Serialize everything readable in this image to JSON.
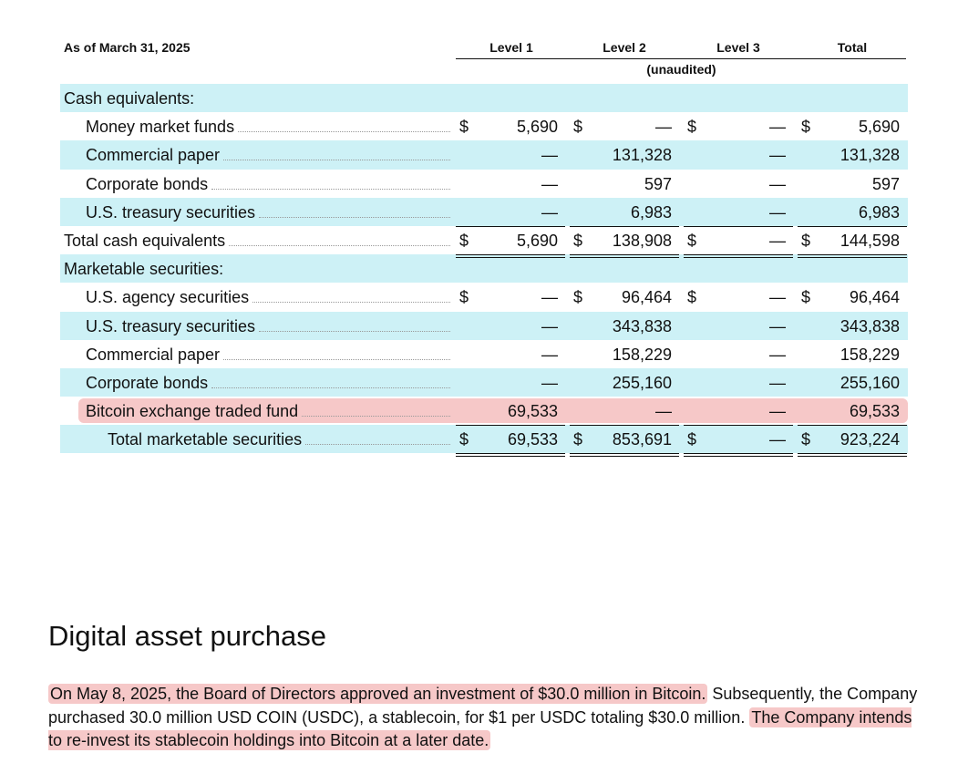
{
  "table": {
    "as_of": "As of March 31, 2025",
    "columns": [
      "Level 1",
      "Level 2",
      "Level 3",
      "Total"
    ],
    "unaudited": "(unaudited)",
    "rows": [
      {
        "label": "Cash equivalents:",
        "indent": 0,
        "shade": true,
        "leader": false,
        "cells": [
          null,
          null,
          null,
          null
        ]
      },
      {
        "label": "Money market funds",
        "indent": 1,
        "shade": false,
        "leader": true,
        "dollar": true,
        "cells": [
          "5,690",
          "—",
          "—",
          "5,690"
        ]
      },
      {
        "label": "Commercial paper",
        "indent": 1,
        "shade": true,
        "leader": true,
        "cells": [
          "—",
          "131,328",
          "—",
          "131,328"
        ]
      },
      {
        "label": "Corporate bonds",
        "indent": 1,
        "shade": false,
        "leader": true,
        "cells": [
          "—",
          "597",
          "—",
          "597"
        ]
      },
      {
        "label": "U.S. treasury securities",
        "indent": 1,
        "shade": true,
        "leader": true,
        "border": "single",
        "cells": [
          "—",
          "6,983",
          "—",
          "6,983"
        ]
      },
      {
        "label": "Total cash equivalents",
        "indent": 0,
        "shade": false,
        "leader": true,
        "dollar": true,
        "border": "double",
        "cells": [
          "5,690",
          "138,908",
          "—",
          "144,598"
        ]
      },
      {
        "label": "Marketable securities:",
        "indent": 0,
        "shade": true,
        "leader": false,
        "cells": [
          null,
          null,
          null,
          null
        ]
      },
      {
        "label": "U.S. agency securities",
        "indent": 1,
        "shade": false,
        "leader": true,
        "dollar": true,
        "cells": [
          "—",
          "96,464",
          "—",
          "96,464"
        ]
      },
      {
        "label": "U.S. treasury securities",
        "indent": 1,
        "shade": true,
        "leader": true,
        "cells": [
          "—",
          "343,838",
          "—",
          "343,838"
        ]
      },
      {
        "label": "Commercial paper",
        "indent": 1,
        "shade": false,
        "leader": true,
        "cells": [
          "—",
          "158,229",
          "—",
          "158,229"
        ]
      },
      {
        "label": "Corporate bonds",
        "indent": 1,
        "shade": true,
        "leader": true,
        "cells": [
          "—",
          "255,160",
          "—",
          "255,160"
        ]
      },
      {
        "label": "Bitcoin exchange traded fund",
        "indent": 1,
        "shade": false,
        "pink": true,
        "leader": true,
        "border": "single",
        "cells": [
          "69,533",
          "—",
          "—",
          "69,533"
        ]
      },
      {
        "label": "Total marketable securities",
        "indent": 2,
        "shade": true,
        "leader": true,
        "dollar": true,
        "border": "double",
        "cells": [
          "69,533",
          "853,691",
          "—",
          "923,224"
        ]
      }
    ]
  },
  "section": {
    "title": "Digital asset purchase",
    "para_hl1": "On May 8, 2025, the Board of Directors approved an investment of $30.0 million in Bitcoin.",
    "para_mid": " Subsequently, the Company purchased 30.0 million USD COIN (USDC), a stablecoin, for $1 per USDC totaling $30.0 million. ",
    "para_hl2": "The Company intends to re-invest its stablecoin holdings into Bitcoin at a later date."
  },
  "colors": {
    "row_shade": "#cdf1f6",
    "highlight": "#f6c8c8"
  }
}
